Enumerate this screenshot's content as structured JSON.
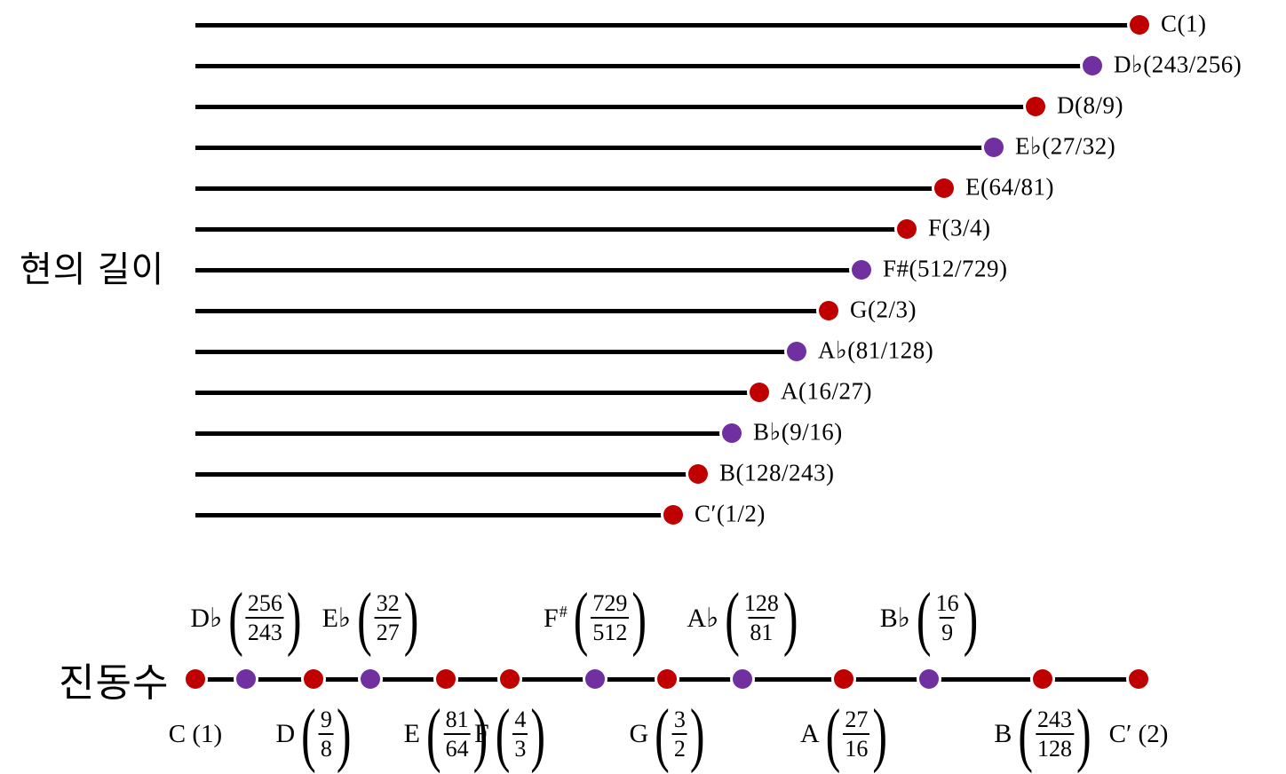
{
  "colors": {
    "red": "#c00000",
    "purple": "#7030a0",
    "line": "#000000",
    "background": "#ffffff",
    "text": "#000000"
  },
  "chart_data": [
    {
      "id": "string_length",
      "type": "bar",
      "orientation": "horizontal",
      "title": "현의 길이",
      "value_meaning": "relative string length (C = 1)",
      "value_range": [
        0.5,
        1.0
      ],
      "rows": [
        {
          "note": "C",
          "fraction": "1",
          "value": 1.0,
          "label": "C(1)",
          "color": "red"
        },
        {
          "note": "D♭",
          "fraction": "243/256",
          "value": 0.94921875,
          "label": "D♭(243/256)",
          "color": "purple"
        },
        {
          "note": "D",
          "fraction": "8/9",
          "value": 0.888889,
          "label": "D(8/9)",
          "color": "red"
        },
        {
          "note": "E♭",
          "fraction": "27/32",
          "value": 0.84375,
          "label": "E♭(27/32)",
          "color": "purple"
        },
        {
          "note": "E",
          "fraction": "64/81",
          "value": 0.790123,
          "label": "E(64/81)",
          "color": "red"
        },
        {
          "note": "F",
          "fraction": "3/4",
          "value": 0.75,
          "label": "F(3/4)",
          "color": "red"
        },
        {
          "note": "F#",
          "fraction": "512/729",
          "value": 0.702332,
          "label": "F#(512/729)",
          "color": "purple"
        },
        {
          "note": "G",
          "fraction": "2/3",
          "value": 0.666667,
          "label": "G(2/3)",
          "color": "red"
        },
        {
          "note": "A♭",
          "fraction": "81/128",
          "value": 0.6328125,
          "label": "A♭(81/128)",
          "color": "purple"
        },
        {
          "note": "A",
          "fraction": "16/27",
          "value": 0.592593,
          "label": "A(16/27)",
          "color": "red"
        },
        {
          "note": "B♭",
          "fraction": "9/16",
          "value": 0.5625,
          "label": "B♭(9/16)",
          "color": "purple"
        },
        {
          "note": "B",
          "fraction": "128/243",
          "value": 0.526749,
          "label": "B(128/243)",
          "color": "red"
        },
        {
          "note": "C′",
          "fraction": "1/2",
          "value": 0.5,
          "label": "C′(1/2)",
          "color": "red"
        }
      ]
    },
    {
      "id": "frequency",
      "type": "number_line",
      "title": "진동수",
      "value_meaning": "relative frequency (C = 1)",
      "x_range": [
        1,
        2
      ],
      "points": [
        {
          "note": "C",
          "fraction": "1",
          "value": 1.0,
          "color": "red",
          "side": "below",
          "style": "inline",
          "text": "C (1)"
        },
        {
          "note": "D♭",
          "fraction": "256/243",
          "value": 1.053498,
          "color": "purple",
          "side": "above",
          "style": "fraction",
          "letter": "D♭",
          "sup": "",
          "num": "256",
          "den": "243"
        },
        {
          "note": "D",
          "fraction": "9/8",
          "value": 1.125,
          "color": "red",
          "side": "below",
          "style": "fraction",
          "letter": "D",
          "sup": "",
          "num": "9",
          "den": "8"
        },
        {
          "note": "E♭",
          "fraction": "32/27",
          "value": 1.185185,
          "color": "purple",
          "side": "above",
          "style": "fraction",
          "letter": "E♭",
          "sup": "",
          "num": "32",
          "den": "27"
        },
        {
          "note": "E",
          "fraction": "81/64",
          "value": 1.265625,
          "color": "red",
          "side": "below",
          "style": "fraction",
          "letter": "E",
          "sup": "",
          "num": "81",
          "den": "64"
        },
        {
          "note": "F",
          "fraction": "4/3",
          "value": 1.333333,
          "color": "red",
          "side": "below",
          "style": "fraction",
          "letter": "F",
          "sup": "",
          "num": "4",
          "den": "3"
        },
        {
          "note": "F#",
          "fraction": "729/512",
          "value": 1.423828,
          "color": "purple",
          "side": "above",
          "style": "fraction",
          "letter": "F",
          "sup": "#",
          "num": "729",
          "den": "512"
        },
        {
          "note": "G",
          "fraction": "3/2",
          "value": 1.5,
          "color": "red",
          "side": "below",
          "style": "fraction",
          "letter": "G",
          "sup": "",
          "num": "3",
          "den": "2"
        },
        {
          "note": "A♭",
          "fraction": "128/81",
          "value": 1.580247,
          "color": "purple",
          "side": "above",
          "style": "fraction",
          "letter": "A♭",
          "sup": "",
          "num": "128",
          "den": "81"
        },
        {
          "note": "A",
          "fraction": "27/16",
          "value": 1.6875,
          "color": "red",
          "side": "below",
          "style": "fraction",
          "letter": "A",
          "sup": "",
          "num": "27",
          "den": "16"
        },
        {
          "note": "B♭",
          "fraction": "16/9",
          "value": 1.777778,
          "color": "purple",
          "side": "above",
          "style": "fraction",
          "letter": "B♭",
          "sup": "",
          "num": "16",
          "den": "9"
        },
        {
          "note": "B",
          "fraction": "243/128",
          "value": 1.898438,
          "color": "red",
          "side": "below",
          "style": "fraction",
          "letter": "B",
          "sup": "",
          "num": "243",
          "den": "128"
        },
        {
          "note": "C′",
          "fraction": "2",
          "value": 2.0,
          "color": "red",
          "side": "below",
          "style": "inline",
          "text": "C′ (2)"
        }
      ]
    }
  ]
}
